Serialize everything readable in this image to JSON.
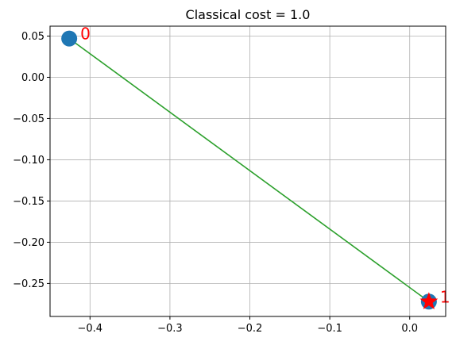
{
  "chart_data": {
    "type": "scatter",
    "title": "Classical cost = 1.0",
    "xlabel": "",
    "ylabel": "",
    "xlim": [
      -0.45,
      0.045
    ],
    "ylim": [
      -0.29,
      0.062
    ],
    "xticks": [
      -0.4,
      -0.3,
      -0.2,
      -0.1,
      0.0
    ],
    "xtick_labels": [
      "−0.4",
      "−0.3",
      "−0.2",
      "−0.1",
      "0.0"
    ],
    "yticks": [
      0.05,
      0.0,
      -0.05,
      -0.1,
      -0.15,
      -0.2,
      -0.25
    ],
    "ytick_labels": [
      "0.05",
      "0.00",
      "−0.05",
      "−0.10",
      "−0.15",
      "−0.20",
      "−0.25"
    ],
    "grid": true,
    "points": [
      {
        "label": "0",
        "x": -0.426,
        "y": 0.047
      },
      {
        "label": "1",
        "x": 0.024,
        "y": -0.272
      }
    ],
    "edges": [
      {
        "from": 0,
        "to": 1
      }
    ],
    "star_points": [
      1
    ],
    "colors": {
      "point": "#1f77b4",
      "edge": "#2ca02c",
      "star": "#ff0000",
      "label": "#ff0000",
      "grid": "#b0b0b0",
      "axis": "#000000"
    }
  }
}
